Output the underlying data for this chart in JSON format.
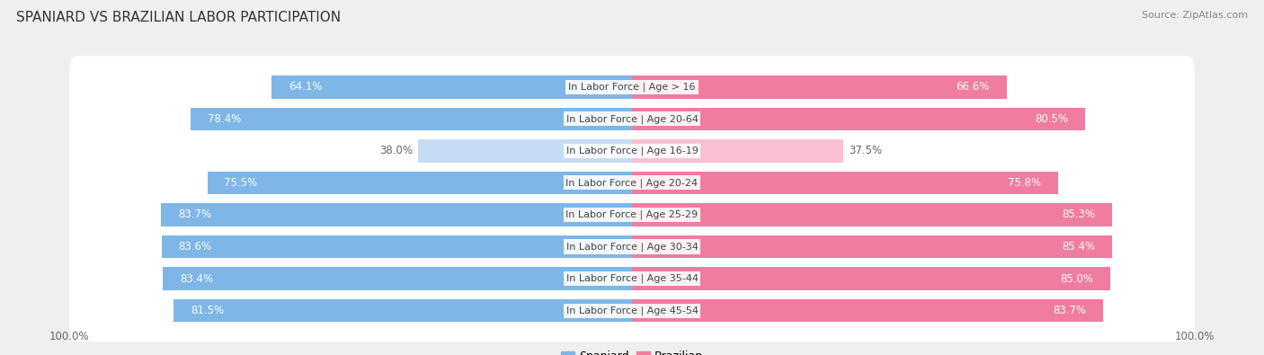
{
  "title": "SPANIARD VS BRAZILIAN LABOR PARTICIPATION",
  "source": "Source: ZipAtlas.com",
  "categories": [
    "In Labor Force | Age > 16",
    "In Labor Force | Age 20-64",
    "In Labor Force | Age 16-19",
    "In Labor Force | Age 20-24",
    "In Labor Force | Age 25-29",
    "In Labor Force | Age 30-34",
    "In Labor Force | Age 35-44",
    "In Labor Force | Age 45-54"
  ],
  "spaniard_values": [
    64.1,
    78.4,
    38.0,
    75.5,
    83.7,
    83.6,
    83.4,
    81.5
  ],
  "brazilian_values": [
    66.6,
    80.5,
    37.5,
    75.8,
    85.3,
    85.4,
    85.0,
    83.7
  ],
  "spaniard_color": "#7EB6E8",
  "brazilian_color": "#F07CA0",
  "spaniard_light_color": "#C5DCF5",
  "brazilian_light_color": "#F9C0D2",
  "text_white": "#FFFFFF",
  "text_dark": "#666666",
  "bg_color": "#EFEFEF",
  "row_bg": "#FFFFFF",
  "row_bg_alt": "#F7F7F7",
  "title_fontsize": 11,
  "source_fontsize": 8,
  "bar_label_fontsize": 8.5,
  "category_fontsize": 8,
  "tick_label_fontsize": 8.5,
  "legend_labels": [
    "Spaniard",
    "Brazilian"
  ],
  "max_val": 100
}
